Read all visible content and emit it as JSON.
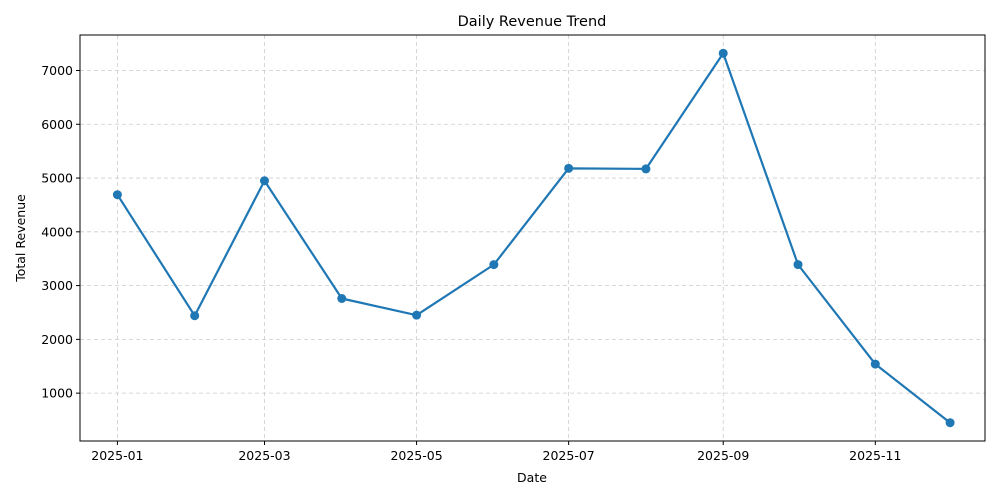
{
  "chart_data": {
    "type": "line",
    "title": "Daily Revenue Trend",
    "xlabel": "Date",
    "ylabel": "Total Revenue",
    "x": [
      "2025-01-01",
      "2025-02-01",
      "2025-03-01",
      "2025-04-01",
      "2025-05-01",
      "2025-06-01",
      "2025-07-01",
      "2025-08-01",
      "2025-09-01",
      "2025-10-01",
      "2025-11-01",
      "2025-12-01"
    ],
    "series": [
      {
        "values": [
          4690,
          2440,
          4950,
          2760,
          2450,
          3390,
          5180,
          5170,
          7320,
          3390,
          1540,
          450
        ],
        "color": "#1f77b4"
      }
    ],
    "x_ticks": [
      "2025-01-01",
      "2025-03-01",
      "2025-05-01",
      "2025-07-01",
      "2025-09-01",
      "2025-11-01"
    ],
    "x_tick_labels": [
      "2025-01",
      "2025-03",
      "2025-05",
      "2025-07",
      "2025-09",
      "2025-11"
    ],
    "y_ticks": [
      1000,
      2000,
      3000,
      4000,
      5000,
      6000,
      7000
    ],
    "ylim": [
      110,
      7660
    ],
    "xlim": [
      "2024-12-17",
      "2025-12-15"
    ],
    "grid": true,
    "marker": "circle"
  }
}
